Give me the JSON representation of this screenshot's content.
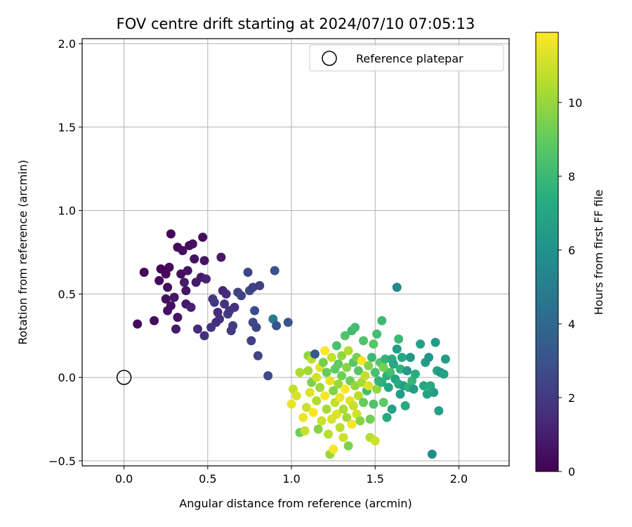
{
  "chart_data": {
    "type": "scatter",
    "title": "FOV centre drift starting at 2024/07/10 07:05:13",
    "xlabel": "Angular distance from reference (arcmin)",
    "ylabel": "Rotation from reference (arcmin)",
    "xlim": [
      -0.25,
      2.3
    ],
    "ylim": [
      -0.53,
      2.03
    ],
    "xticks": [
      0.0,
      0.5,
      1.0,
      1.5,
      2.0
    ],
    "xtick_labels": [
      "0.0",
      "0.5",
      "1.0",
      "1.5",
      "2.0"
    ],
    "yticks": [
      -0.5,
      0.0,
      0.5,
      1.0,
      1.5,
      2.0
    ],
    "ytick_labels": [
      "−0.5",
      "0.0",
      "0.5",
      "1.0",
      "1.5",
      "2.0"
    ],
    "grid": true,
    "legend": {
      "position": "top-right",
      "entries": [
        "Reference platepar"
      ]
    },
    "colorbar": {
      "label": "Hours from first FF file",
      "colormap": "viridis",
      "range": [
        0,
        11.9
      ],
      "ticks": [
        0,
        2,
        4,
        6,
        8,
        10
      ],
      "tick_labels": [
        "0",
        "2",
        "4",
        "6",
        "8",
        "10"
      ]
    },
    "reference": {
      "x": 0.0,
      "y": 0.0
    },
    "points": [
      {
        "x": 0.08,
        "y": 0.32,
        "t": 0.3
      },
      {
        "x": 0.12,
        "y": 0.63,
        "t": 0.2
      },
      {
        "x": 0.18,
        "y": 0.34,
        "t": 0.4
      },
      {
        "x": 0.21,
        "y": 0.58,
        "t": 0.3
      },
      {
        "x": 0.22,
        "y": 0.65,
        "t": 0.1
      },
      {
        "x": 0.25,
        "y": 0.47,
        "t": 0.5
      },
      {
        "x": 0.25,
        "y": 0.62,
        "t": 0.2
      },
      {
        "x": 0.26,
        "y": 0.54,
        "t": 0.4
      },
      {
        "x": 0.26,
        "y": 0.4,
        "t": 0.6
      },
      {
        "x": 0.27,
        "y": 0.66,
        "t": 0.3
      },
      {
        "x": 0.28,
        "y": 0.86,
        "t": 0.2
      },
      {
        "x": 0.28,
        "y": 0.43,
        "t": 0.5
      },
      {
        "x": 0.3,
        "y": 0.48,
        "t": 0.7
      },
      {
        "x": 0.31,
        "y": 0.29,
        "t": 0.8
      },
      {
        "x": 0.32,
        "y": 0.36,
        "t": 0.6
      },
      {
        "x": 0.32,
        "y": 0.78,
        "t": 0.3
      },
      {
        "x": 0.34,
        "y": 0.62,
        "t": 0.4
      },
      {
        "x": 0.35,
        "y": 0.76,
        "t": 0.5
      },
      {
        "x": 0.36,
        "y": 0.57,
        "t": 0.9
      },
      {
        "x": 0.37,
        "y": 0.52,
        "t": 0.7
      },
      {
        "x": 0.37,
        "y": 0.44,
        "t": 0.8
      },
      {
        "x": 0.38,
        "y": 0.64,
        "t": 0.6
      },
      {
        "x": 0.39,
        "y": 0.79,
        "t": 0.4
      },
      {
        "x": 0.4,
        "y": 0.42,
        "t": 1.1
      },
      {
        "x": 0.41,
        "y": 0.8,
        "t": 0.5
      },
      {
        "x": 0.42,
        "y": 0.71,
        "t": 0.6
      },
      {
        "x": 0.43,
        "y": 0.57,
        "t": 0.9
      },
      {
        "x": 0.44,
        "y": 0.29,
        "t": 1.4
      },
      {
        "x": 0.46,
        "y": 0.6,
        "t": 0.8
      },
      {
        "x": 0.47,
        "y": 0.84,
        "t": 0.4
      },
      {
        "x": 0.48,
        "y": 0.7,
        "t": 0.7
      },
      {
        "x": 0.48,
        "y": 0.25,
        "t": 1.6
      },
      {
        "x": 0.49,
        "y": 0.59,
        "t": 1.2
      },
      {
        "x": 0.52,
        "y": 0.3,
        "t": 1.8
      },
      {
        "x": 0.53,
        "y": 0.47,
        "t": 1.9
      },
      {
        "x": 0.54,
        "y": 0.45,
        "t": 2.0
      },
      {
        "x": 0.55,
        "y": 0.33,
        "t": 1.7
      },
      {
        "x": 0.56,
        "y": 0.39,
        "t": 1.5
      },
      {
        "x": 0.57,
        "y": 0.35,
        "t": 1.6
      },
      {
        "x": 0.58,
        "y": 0.72,
        "t": 0.8
      },
      {
        "x": 0.59,
        "y": 0.52,
        "t": 1.3
      },
      {
        "x": 0.6,
        "y": 0.44,
        "t": 1.8
      },
      {
        "x": 0.61,
        "y": 0.5,
        "t": 1.4
      },
      {
        "x": 0.62,
        "y": 0.38,
        "t": 2.1
      },
      {
        "x": 0.63,
        "y": 0.4,
        "t": 1.9
      },
      {
        "x": 0.64,
        "y": 0.28,
        "t": 2.0
      },
      {
        "x": 0.65,
        "y": 0.31,
        "t": 2.2
      },
      {
        "x": 0.66,
        "y": 0.42,
        "t": 1.7
      },
      {
        "x": 0.68,
        "y": 0.51,
        "t": 2.3
      },
      {
        "x": 0.7,
        "y": 0.49,
        "t": 2.4
      },
      {
        "x": 0.74,
        "y": 0.63,
        "t": 2.5
      },
      {
        "x": 0.75,
        "y": 0.52,
        "t": 2.6
      },
      {
        "x": 0.76,
        "y": 0.22,
        "t": 2.2
      },
      {
        "x": 0.77,
        "y": 0.54,
        "t": 2.3
      },
      {
        "x": 0.77,
        "y": 0.33,
        "t": 2.6
      },
      {
        "x": 0.78,
        "y": 0.4,
        "t": 2.8
      },
      {
        "x": 0.79,
        "y": 0.3,
        "t": 2.5
      },
      {
        "x": 0.8,
        "y": 0.13,
        "t": 2.4
      },
      {
        "x": 0.81,
        "y": 0.55,
        "t": 2.2
      },
      {
        "x": 0.86,
        "y": 0.01,
        "t": 2.7
      },
      {
        "x": 0.89,
        "y": 0.35,
        "t": 5.0
      },
      {
        "x": 0.9,
        "y": 0.64,
        "t": 2.9
      },
      {
        "x": 0.91,
        "y": 0.31,
        "t": 3.0
      },
      {
        "x": 0.98,
        "y": 0.33,
        "t": 3.1
      },
      {
        "x": 1.63,
        "y": 0.54,
        "t": 5.5
      },
      {
        "x": 1.84,
        "y": -0.46,
        "t": 5.8
      },
      {
        "x": 1.0,
        "y": -0.16,
        "t": 11.5
      },
      {
        "x": 1.01,
        "y": -0.07,
        "t": 10.8
      },
      {
        "x": 1.03,
        "y": -0.11,
        "t": 11.2
      },
      {
        "x": 1.05,
        "y": 0.03,
        "t": 10.4
      },
      {
        "x": 1.05,
        "y": -0.33,
        "t": 9.2
      },
      {
        "x": 1.07,
        "y": -0.24,
        "t": 11.6
      },
      {
        "x": 1.08,
        "y": -0.32,
        "t": 10.9
      },
      {
        "x": 1.09,
        "y": -0.18,
        "t": 11.0
      },
      {
        "x": 1.1,
        "y": 0.04,
        "t": 10.2
      },
      {
        "x": 1.1,
        "y": 0.13,
        "t": 9.8
      },
      {
        "x": 1.11,
        "y": -0.09,
        "t": 11.3
      },
      {
        "x": 1.12,
        "y": 0.11,
        "t": 10.7
      },
      {
        "x": 1.12,
        "y": -0.03,
        "t": 9.5
      },
      {
        "x": 1.13,
        "y": -0.21,
        "t": 11.8
      },
      {
        "x": 1.14,
        "y": 0.14,
        "t": 3.3
      },
      {
        "x": 1.15,
        "y": -0.14,
        "t": 10.5
      },
      {
        "x": 1.15,
        "y": 0.0,
        "t": 11.1
      },
      {
        "x": 1.16,
        "y": -0.31,
        "t": 9.7
      },
      {
        "x": 1.17,
        "y": 0.06,
        "t": 11.4
      },
      {
        "x": 1.17,
        "y": -0.06,
        "t": 10.1
      },
      {
        "x": 1.18,
        "y": -0.26,
        "t": 11.0
      },
      {
        "x": 1.19,
        "y": 0.09,
        "t": 9.4
      },
      {
        "x": 1.2,
        "y": -0.11,
        "t": 11.7
      },
      {
        "x": 1.2,
        "y": 0.16,
        "t": 11.9
      },
      {
        "x": 1.21,
        "y": -0.19,
        "t": 10.3
      },
      {
        "x": 1.21,
        "y": 0.03,
        "t": 9.1
      },
      {
        "x": 1.22,
        "y": -0.34,
        "t": 10.6
      },
      {
        "x": 1.23,
        "y": -0.02,
        "t": 11.5
      },
      {
        "x": 1.23,
        "y": -0.46,
        "t": 10.0
      },
      {
        "x": 1.24,
        "y": 0.12,
        "t": 10.9
      },
      {
        "x": 1.24,
        "y": -0.25,
        "t": 11.2
      },
      {
        "x": 1.25,
        "y": -0.08,
        "t": 9.6
      },
      {
        "x": 1.25,
        "y": -0.43,
        "t": 11.8
      },
      {
        "x": 1.26,
        "y": 0.05,
        "t": 8.9
      },
      {
        "x": 1.26,
        "y": -0.15,
        "t": 10.8
      },
      {
        "x": 1.27,
        "y": 0.19,
        "t": 8.4
      },
      {
        "x": 1.27,
        "y": -0.22,
        "t": 11.3
      },
      {
        "x": 1.28,
        "y": -0.04,
        "t": 10.1
      },
      {
        "x": 1.28,
        "y": 0.08,
        "t": 9.0
      },
      {
        "x": 1.29,
        "y": -0.3,
        "t": 10.7
      },
      {
        "x": 1.29,
        "y": -0.12,
        "t": 11.6
      },
      {
        "x": 1.3,
        "y": 0.01,
        "t": 9.3
      },
      {
        "x": 1.3,
        "y": 0.13,
        "t": 9.9
      },
      {
        "x": 1.31,
        "y": -0.19,
        "t": 10.4
      },
      {
        "x": 1.31,
        "y": -0.36,
        "t": 11.0
      },
      {
        "x": 1.32,
        "y": 0.25,
        "t": 8.6
      },
      {
        "x": 1.32,
        "y": -0.07,
        "t": 11.9
      },
      {
        "x": 1.33,
        "y": 0.06,
        "t": 9.7
      },
      {
        "x": 1.33,
        "y": -0.24,
        "t": 10.2
      },
      {
        "x": 1.34,
        "y": -0.41,
        "t": 9.5
      },
      {
        "x": 1.34,
        "y": 0.16,
        "t": 10.5
      },
      {
        "x": 1.35,
        "y": -0.14,
        "t": 11.4
      },
      {
        "x": 1.35,
        "y": -0.02,
        "t": 9.2
      },
      {
        "x": 1.36,
        "y": 0.28,
        "t": 8.1
      },
      {
        "x": 1.36,
        "y": -0.28,
        "t": 11.7
      },
      {
        "x": 1.37,
        "y": 0.09,
        "t": 8.8
      },
      {
        "x": 1.37,
        "y": -0.17,
        "t": 10.9
      },
      {
        "x": 1.38,
        "y": 0.3,
        "t": 8.3
      },
      {
        "x": 1.38,
        "y": -0.05,
        "t": 10.0
      },
      {
        "x": 1.39,
        "y": -0.22,
        "t": 11.1
      },
      {
        "x": 1.39,
        "y": 0.12,
        "t": 9.4
      },
      {
        "x": 1.4,
        "y": -0.11,
        "t": 10.6
      },
      {
        "x": 1.4,
        "y": 0.04,
        "t": 8.7
      },
      {
        "x": 1.41,
        "y": -0.26,
        "t": 9.8
      },
      {
        "x": 1.42,
        "y": 0.1,
        "t": 11.8
      },
      {
        "x": 1.42,
        "y": -0.03,
        "t": 10.3
      },
      {
        "x": 1.43,
        "y": 0.22,
        "t": 8.5
      },
      {
        "x": 1.43,
        "y": -0.15,
        "t": 9.1
      },
      {
        "x": 1.44,
        "y": 0.01,
        "t": 10.8
      },
      {
        "x": 1.45,
        "y": -0.08,
        "t": 8.2
      },
      {
        "x": 1.46,
        "y": 0.07,
        "t": 9.6
      },
      {
        "x": 1.46,
        "y": -0.05,
        "t": 11.3
      },
      {
        "x": 1.47,
        "y": -0.25,
        "t": 9.3
      },
      {
        "x": 1.47,
        "y": -0.36,
        "t": 10.6
      },
      {
        "x": 1.48,
        "y": 0.12,
        "t": 8.0
      },
      {
        "x": 1.49,
        "y": -0.16,
        "t": 8.6
      },
      {
        "x": 1.49,
        "y": 0.2,
        "t": 8.8
      },
      {
        "x": 1.5,
        "y": -0.38,
        "t": 11.0
      },
      {
        "x": 1.5,
        "y": 0.03,
        "t": 8.4
      },
      {
        "x": 1.51,
        "y": -0.07,
        "t": 9.9
      },
      {
        "x": 1.51,
        "y": 0.26,
        "t": 8.2
      },
      {
        "x": 1.52,
        "y": -0.02,
        "t": 7.9
      },
      {
        "x": 1.53,
        "y": 0.09,
        "t": 8.7
      },
      {
        "x": 1.54,
        "y": 0.34,
        "t": 8.1
      },
      {
        "x": 1.54,
        "y": -0.03,
        "t": 7.6
      },
      {
        "x": 1.55,
        "y": -0.15,
        "t": 8.9
      },
      {
        "x": 1.55,
        "y": 0.06,
        "t": 9.4
      },
      {
        "x": 1.56,
        "y": 0.11,
        "t": 7.8
      },
      {
        "x": 1.57,
        "y": -0.24,
        "t": 7.2
      },
      {
        "x": 1.57,
        "y": 0.01,
        "t": 7.5
      },
      {
        "x": 1.58,
        "y": -0.06,
        "t": 7.0
      },
      {
        "x": 1.59,
        "y": 0.03,
        "t": 8.3
      },
      {
        "x": 1.6,
        "y": 0.11,
        "t": 7.4
      },
      {
        "x": 1.6,
        "y": -0.19,
        "t": 6.8
      },
      {
        "x": 1.61,
        "y": 0.08,
        "t": 7.1
      },
      {
        "x": 1.62,
        "y": -0.01,
        "t": 6.9
      },
      {
        "x": 1.63,
        "y": 0.17,
        "t": 6.6
      },
      {
        "x": 1.64,
        "y": 0.23,
        "t": 8.0
      },
      {
        "x": 1.64,
        "y": -0.04,
        "t": 7.3
      },
      {
        "x": 1.65,
        "y": 0.05,
        "t": 7.7
      },
      {
        "x": 1.65,
        "y": -0.1,
        "t": 6.5
      },
      {
        "x": 1.66,
        "y": 0.12,
        "t": 7.0
      },
      {
        "x": 1.67,
        "y": -0.05,
        "t": 6.7
      },
      {
        "x": 1.68,
        "y": -0.17,
        "t": 7.2
      },
      {
        "x": 1.69,
        "y": 0.04,
        "t": 6.4
      },
      {
        "x": 1.7,
        "y": -0.06,
        "t": 7.6
      },
      {
        "x": 1.71,
        "y": 0.12,
        "t": 6.3
      },
      {
        "x": 1.72,
        "y": -0.02,
        "t": 7.9
      },
      {
        "x": 1.73,
        "y": -0.07,
        "t": 6.6
      },
      {
        "x": 1.74,
        "y": 0.02,
        "t": 7.4
      },
      {
        "x": 1.77,
        "y": 0.2,
        "t": 6.8
      },
      {
        "x": 1.79,
        "y": -0.05,
        "t": 7.1
      },
      {
        "x": 1.8,
        "y": 0.09,
        "t": 6.5
      },
      {
        "x": 1.81,
        "y": -0.1,
        "t": 6.9
      },
      {
        "x": 1.82,
        "y": 0.12,
        "t": 6.2
      },
      {
        "x": 1.83,
        "y": -0.05,
        "t": 7.3
      },
      {
        "x": 1.85,
        "y": -0.09,
        "t": 6.7
      },
      {
        "x": 1.86,
        "y": 0.21,
        "t": 6.4
      },
      {
        "x": 1.87,
        "y": 0.04,
        "t": 7.0
      },
      {
        "x": 1.88,
        "y": -0.2,
        "t": 6.6
      },
      {
        "x": 1.89,
        "y": 0.03,
        "t": 6.3
      },
      {
        "x": 1.91,
        "y": 0.02,
        "t": 6.8
      },
      {
        "x": 1.92,
        "y": 0.11,
        "t": 6.5
      }
    ]
  }
}
